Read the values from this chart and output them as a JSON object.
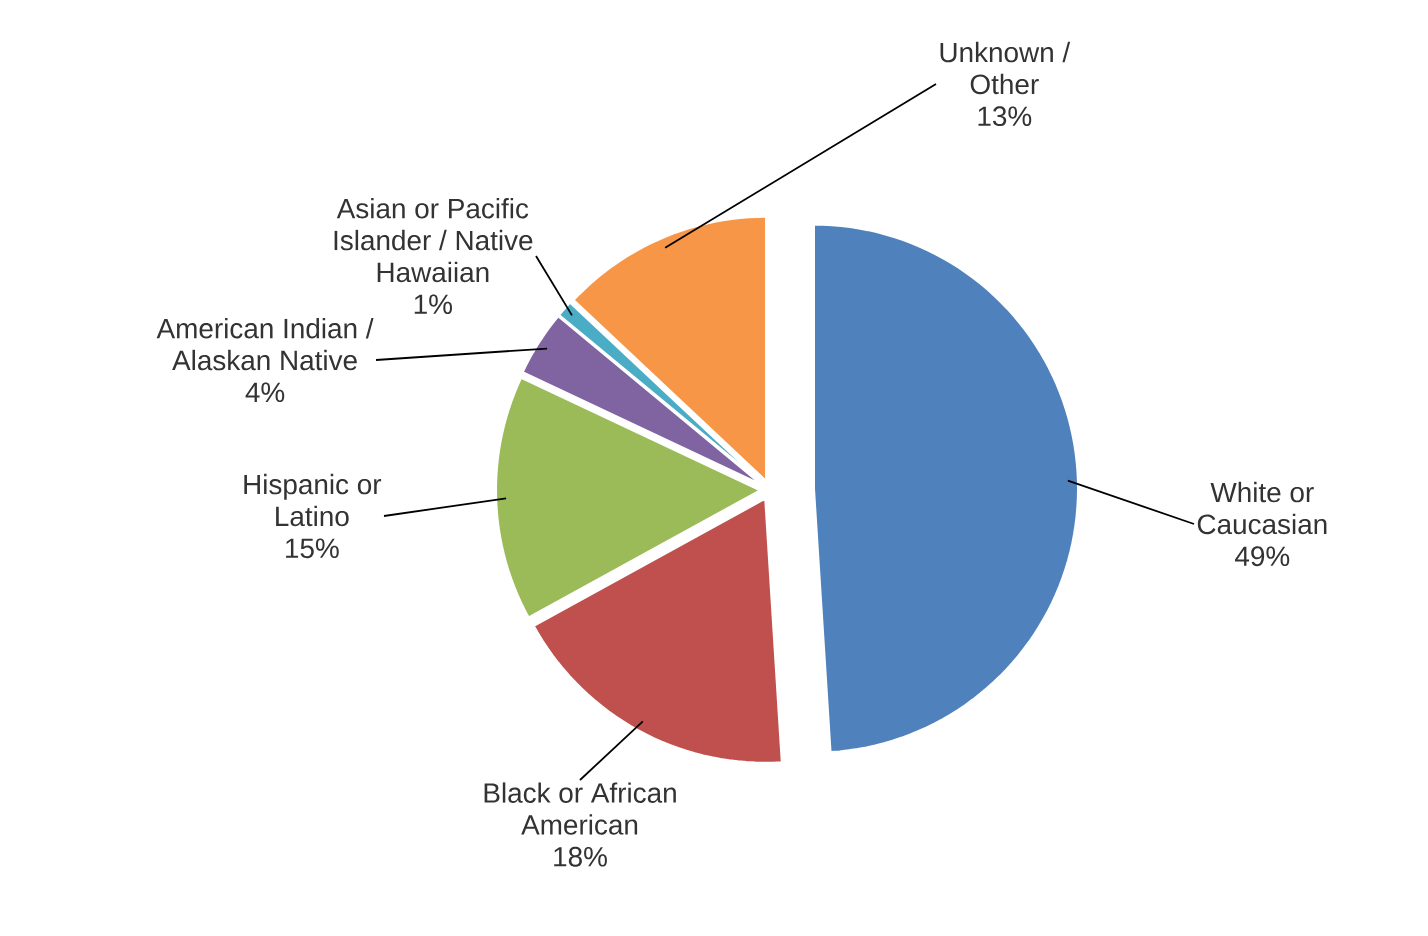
{
  "chart_data": {
    "type": "pie",
    "categories": [
      "White or Caucasian",
      "Black or African American",
      "Hispanic or Latino",
      "American Indian / Alaskan Native",
      "Asian or Pacific Islander / Native Hawaiian",
      "Unknown / Other"
    ],
    "values": [
      49,
      18,
      15,
      4,
      1,
      13
    ],
    "value_labels": [
      "49%",
      "18%",
      "15%",
      "4%",
      "1%",
      "13%"
    ],
    "colors": [
      "#4f81bd",
      "#c0504d",
      "#9bbb59",
      "#8064a2",
      "#4bacc6",
      "#f79646"
    ]
  }
}
